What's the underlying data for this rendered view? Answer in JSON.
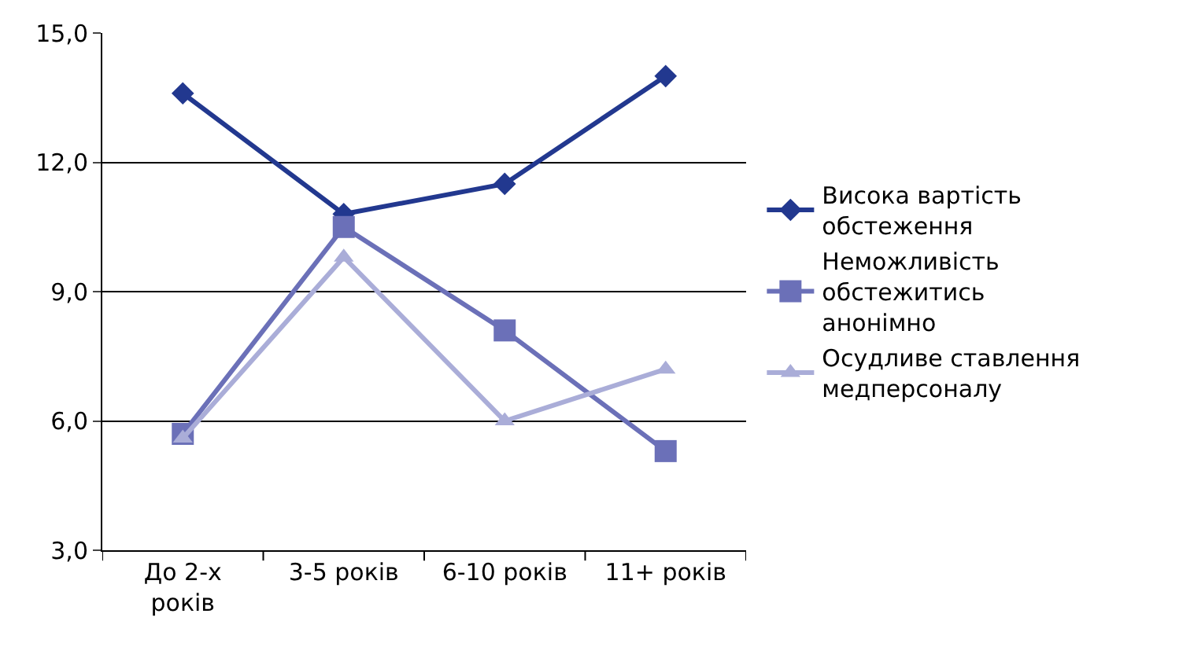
{
  "chart_data": {
    "type": "line",
    "categories": [
      "До 2-х років",
      "3-5 років",
      "6-10 років",
      "11+ років"
    ],
    "series": [
      {
        "name": "Висока вартість обстеження",
        "color": "#22388f",
        "marker": "diamond",
        "values": [
          13.6,
          10.8,
          11.5,
          14.0
        ]
      },
      {
        "name": "Неможливість обстежитись анонімно",
        "color": "#6b70b8",
        "marker": "square",
        "values": [
          5.7,
          10.5,
          8.1,
          5.3
        ]
      },
      {
        "name": "Осудливе ставлення медперсоналу",
        "color": "#aaadd8",
        "marker": "triangle",
        "values": [
          5.6,
          9.8,
          6.0,
          7.2
        ]
      }
    ],
    "ylim": [
      3.0,
      15.0
    ],
    "yticks": [
      {
        "value": 3,
        "label": "3,0"
      },
      {
        "value": 6,
        "label": "6,0"
      },
      {
        "value": 9,
        "label": "9,0"
      },
      {
        "value": 12,
        "label": "12,0"
      },
      {
        "value": 15,
        "label": "15,0"
      }
    ],
    "grid": "y",
    "legend": "right",
    "line_style": "solid"
  }
}
